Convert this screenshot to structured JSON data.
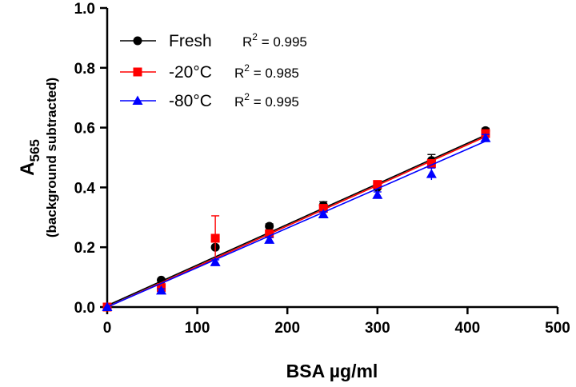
{
  "chart_data": {
    "type": "scatter",
    "title": "",
    "xlabel": "BSA µg/ml",
    "ylabel_main": "A",
    "ylabel_subscript": "565",
    "ylabel_sub": "(background subtracted)",
    "xlim": [
      0,
      500
    ],
    "ylim": [
      0.0,
      1.0
    ],
    "x_ticks": [
      0,
      100,
      200,
      300,
      400,
      500
    ],
    "y_ticks": [
      "0.0",
      "0.2",
      "0.4",
      "0.6",
      "0.8",
      "1.0"
    ],
    "legend_position": "top-left",
    "x": [
      0,
      60,
      120,
      180,
      240,
      300,
      360,
      420
    ],
    "series": [
      {
        "name": "Fresh",
        "r2_label": "R",
        "r2_exp": "2",
        "r2_value": " = 0.995",
        "color": "#000000",
        "marker": "circle",
        "values": [
          0.0,
          0.09,
          0.2,
          0.27,
          0.34,
          0.4,
          0.49,
          0.59
        ],
        "errors": [
          0.0,
          0.005,
          0.005,
          0.008,
          0.012,
          0.012,
          0.02,
          0.008
        ],
        "fit": [
          0.005,
          0.001357
        ]
      },
      {
        "name": "-20°C",
        "r2_label": "R",
        "r2_exp": "2",
        "r2_value": " = 0.985",
        "color": "#ff0000",
        "marker": "square",
        "values": [
          0.0,
          0.065,
          0.23,
          0.245,
          0.33,
          0.41,
          0.48,
          0.58
        ],
        "errors": [
          0.0,
          0.01,
          0.075,
          0.01,
          0.012,
          0.01,
          0.012,
          0.01
        ],
        "fit": [
          0.0,
          0.001357
        ]
      },
      {
        "name": "-80°C",
        "r2_label": "R",
        "r2_exp": "2",
        "r2_value": " = 0.995",
        "color": "#0000ff",
        "marker": "triangle",
        "values": [
          0.0,
          0.055,
          0.15,
          0.225,
          0.31,
          0.375,
          0.445,
          0.565
        ],
        "errors": [
          0.0,
          0.006,
          0.008,
          0.008,
          0.008,
          0.01,
          0.02,
          0.012
        ],
        "fit": [
          0.0,
          0.00132
        ]
      }
    ]
  }
}
